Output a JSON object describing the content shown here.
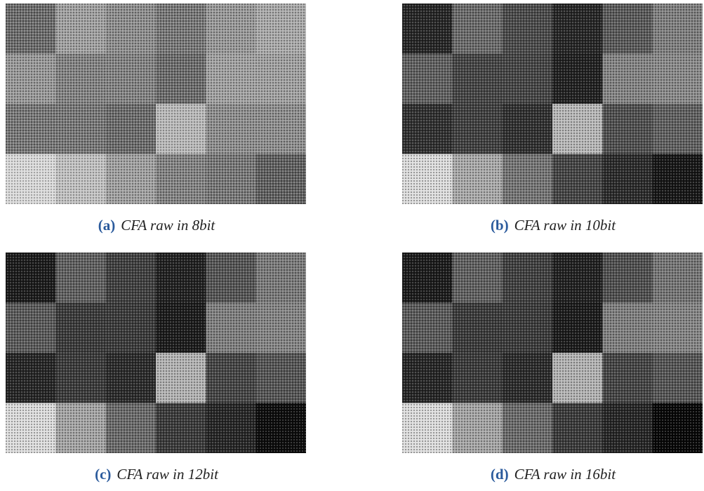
{
  "figure": {
    "panels": [
      {
        "label": "(a)",
        "caption": "CFA raw in 8bit"
      },
      {
        "label": "(b)",
        "caption": "CFA raw in 10bit"
      },
      {
        "label": "(c)",
        "caption": "CFA raw in 12bit"
      },
      {
        "label": "(d)",
        "caption": "CFA raw in 16bit"
      }
    ]
  }
}
